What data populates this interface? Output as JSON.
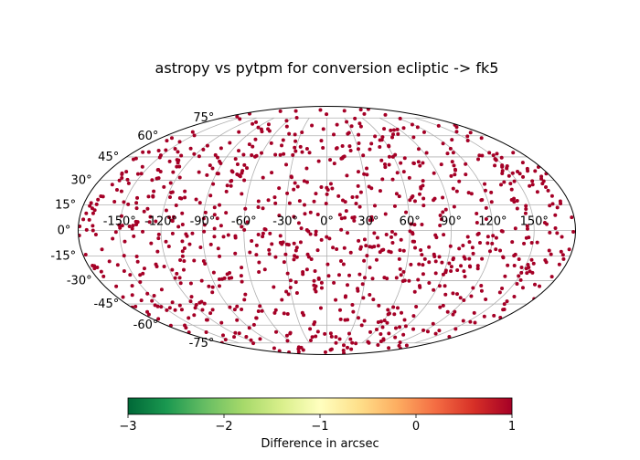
{
  "chart_data": {
    "type": "scatter",
    "projection": "mollweide",
    "title": "astropy vs pytpm for conversion ecliptic -> fk5",
    "x_ticks": [
      "-150°",
      "-120°",
      "-90°",
      "-60°",
      "-30°",
      "0°",
      "30°",
      "60°",
      "90°",
      "120°",
      "150°"
    ],
    "y_ticks": [
      "-75°",
      "-60°",
      "-45°",
      "-30°",
      "-15°",
      "0°",
      "15°",
      "30°",
      "45°",
      "60°",
      "75°"
    ],
    "xlim": [
      -180,
      180
    ],
    "ylim": [
      -90,
      90
    ],
    "grid": true,
    "marker_color": "#a50026",
    "point_count": 1000,
    "value_range": [
      1,
      1
    ],
    "colorbar": {
      "label": "Difference in arcsec",
      "ticks": [
        "−3",
        "−2",
        "−1",
        "0",
        "1"
      ],
      "range": [
        -3,
        1
      ],
      "colormap": "RdYlGn_r",
      "colors": [
        "#006837",
        "#1a9850",
        "#66bd63",
        "#a6d96a",
        "#d9ef8b",
        "#ffffbf",
        "#fee08b",
        "#fdae61",
        "#f46d43",
        "#d73027",
        "#a50026"
      ]
    }
  }
}
